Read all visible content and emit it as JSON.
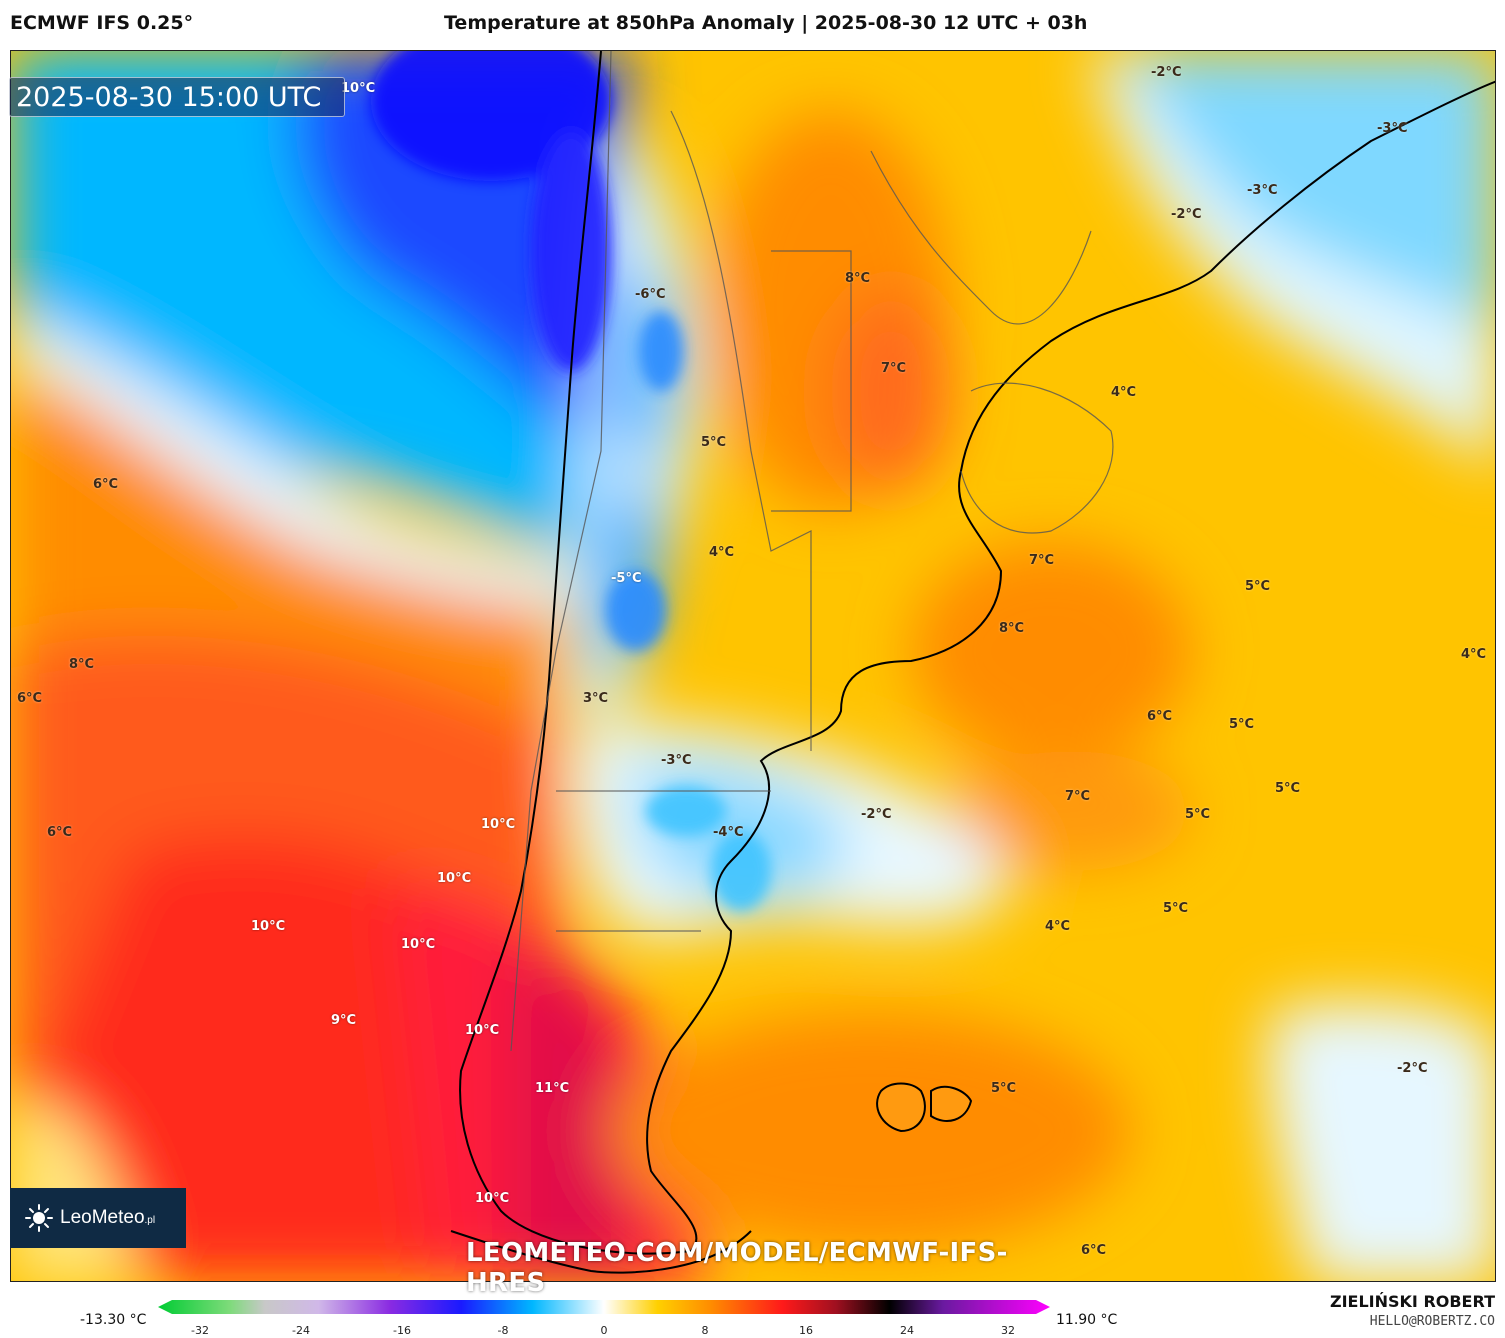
{
  "header": {
    "model": "ECMWF IFS 0.25°",
    "title": "Temperature at 850hPa Anomaly | 2025-08-30 12 UTC + 03h"
  },
  "map": {
    "valid_time": "2025-08-30 15:00 UTC",
    "watermark": "LEOMETEO.COM/MODEL/ECMWF-IFS-HRES",
    "logo": {
      "name": "LeoMeteo",
      "suffix": ".pl"
    },
    "labels": [
      "10°C",
      "-2°C",
      "-3°C",
      "-3°C",
      "-2°C",
      "-6°C",
      "8°C",
      "7°C",
      "4°C",
      "5°C",
      "6°C",
      "4°C",
      "-5°C",
      "7°C",
      "5°C",
      "8°C",
      "8°C",
      "4°C",
      "6°C",
      "3°C",
      "6°C",
      "5°C",
      "-3°C",
      "7°C",
      "5°C",
      "6°C",
      "-2°C",
      "-4°C",
      "5°C",
      "10°C",
      "10°C",
      "10°C",
      "10°C",
      "4°C",
      "5°C",
      "9°C",
      "10°C",
      "11°C",
      "-2°C",
      "5°C",
      "10°C",
      "6°C"
    ],
    "colors": {
      "cold_deep": "#1a1aff",
      "cold": "#00b7ff",
      "neutral": "#ffffff",
      "warm": "#ffd000",
      "hot": "#ff6a00",
      "very_hot": "#ff1a1a",
      "extreme": "#e0104a"
    }
  },
  "colorbar": {
    "min_label": "-13.30 °C",
    "max_label": "11.90 °C",
    "ticks": [
      "-32",
      "-24",
      "-16",
      "-8",
      "0",
      "8",
      "16",
      "24",
      "32"
    ]
  },
  "footer": {
    "author": "ZIELIŃSKI ROBERT",
    "email": "HELLO@ROBERTZ.CO"
  }
}
